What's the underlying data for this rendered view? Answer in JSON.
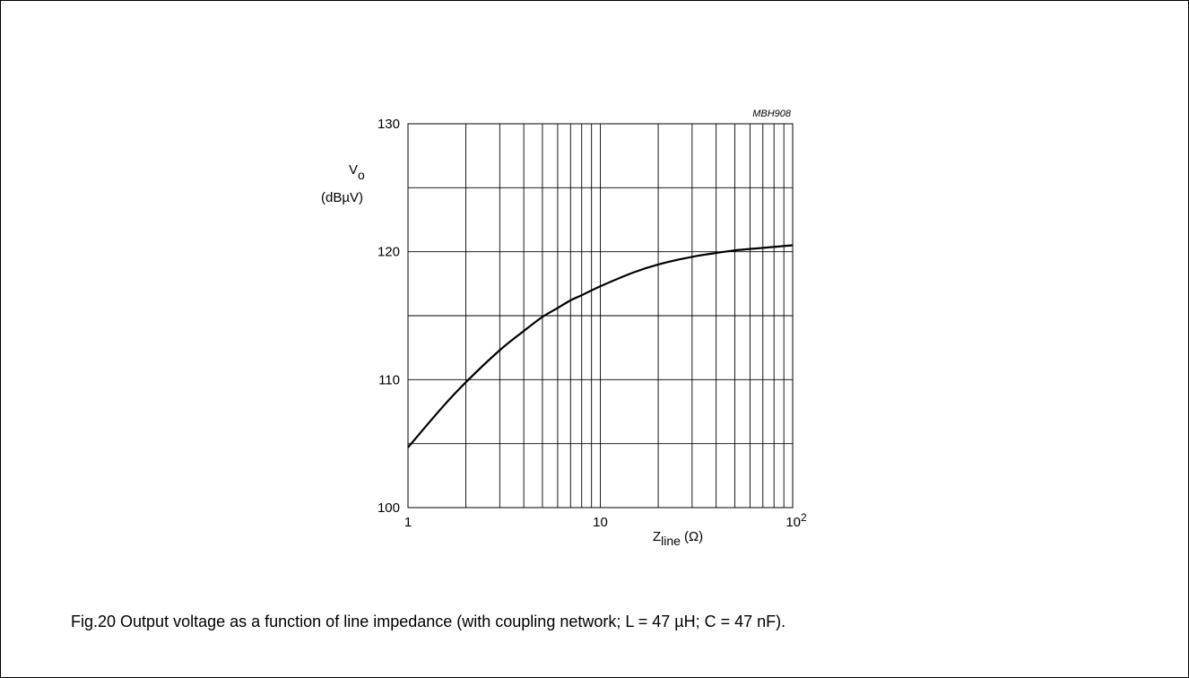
{
  "caption": "Fig.20  Output voltage as a function of line impedance (with coupling network; L = 47 µH; C = 47 nF).",
  "chart_data": {
    "type": "line",
    "code_label": "MBH908",
    "x_scale": "log",
    "xlim": [
      1,
      100
    ],
    "ylim": [
      100,
      130
    ],
    "grid": true,
    "x_tick_labels": [
      {
        "value": 1,
        "base": "1",
        "sup": ""
      },
      {
        "value": 10,
        "base": "10",
        "sup": ""
      },
      {
        "value": 100,
        "base": "10",
        "sup": "2"
      }
    ],
    "y_tick_labels": [
      {
        "value": 100,
        "label": "100"
      },
      {
        "value": 110,
        "label": "110"
      },
      {
        "value": 120,
        "label": "120"
      },
      {
        "value": 130,
        "label": "130"
      }
    ],
    "y_gridlines": [
      105,
      110,
      115,
      120,
      125
    ],
    "x_gridlines": [
      2,
      3,
      4,
      5,
      6,
      7,
      8,
      9,
      10,
      20,
      30,
      40,
      50,
      60,
      70,
      80,
      90
    ],
    "xlabel": {
      "main": "Z",
      "sub": "line",
      "unit": "(Ω)"
    },
    "ylabel": {
      "main": "V",
      "sub": "o",
      "unit": "(dBµV)"
    },
    "series": [
      {
        "x": [
          1,
          1.5,
          2,
          3,
          4,
          5,
          6,
          7,
          8,
          10,
          15,
          20,
          30,
          40,
          50,
          70,
          100
        ],
        "y": [
          104.7,
          107.8,
          109.8,
          112.3,
          113.8,
          114.9,
          115.6,
          116.2,
          116.6,
          117.3,
          118.4,
          119.0,
          119.6,
          119.9,
          120.1,
          120.3,
          120.5
        ]
      }
    ]
  }
}
